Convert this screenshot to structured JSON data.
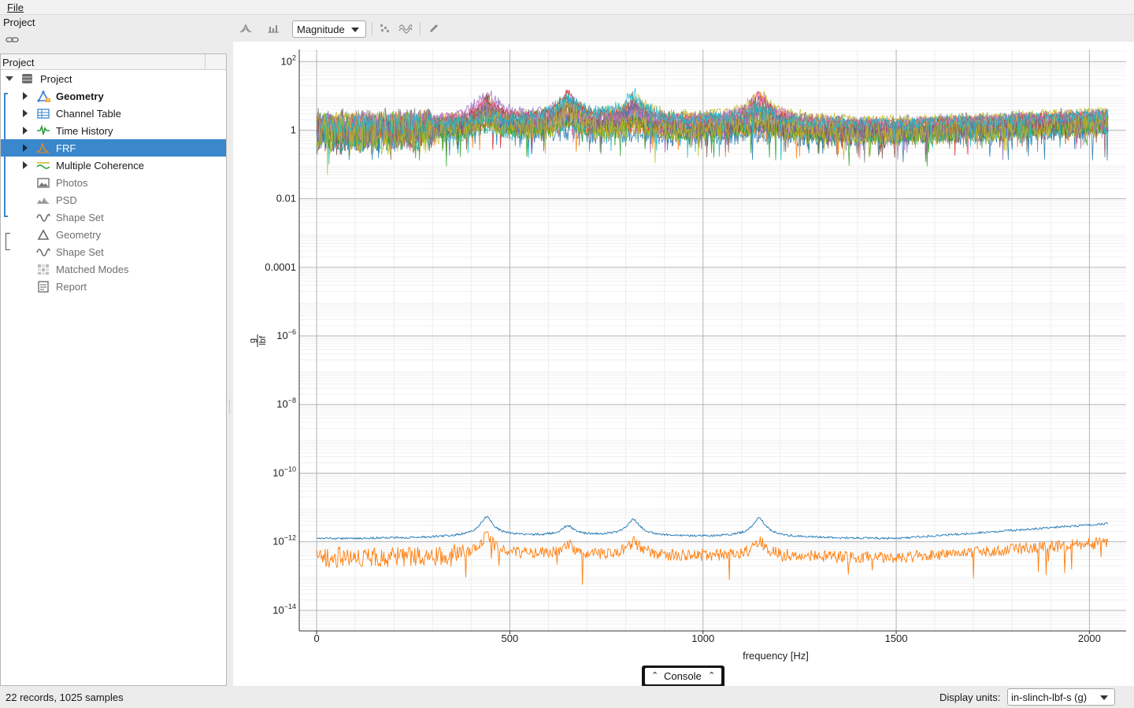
{
  "menu": {
    "file_label": "File"
  },
  "left_panel": {
    "title": "Project",
    "tree_header": "Project"
  },
  "tree": [
    {
      "label": "Project",
      "icon": "database-icon",
      "bold": false,
      "dim": false,
      "expanded": true,
      "selected": false,
      "has_arrow": true
    },
    {
      "label": "Geometry",
      "icon": "geometry-warning-icon",
      "bold": true,
      "dim": false,
      "selected": false,
      "has_arrow": true
    },
    {
      "label": "Channel Table",
      "icon": "table-icon",
      "bold": false,
      "dim": false,
      "selected": false,
      "has_arrow": true
    },
    {
      "label": "Time History",
      "icon": "time-history-icon",
      "bold": false,
      "dim": false,
      "selected": false,
      "has_arrow": true
    },
    {
      "label": "FRF",
      "icon": "frf-icon",
      "bold": false,
      "dim": false,
      "selected": true,
      "has_arrow": true
    },
    {
      "label": "Multiple Coherence",
      "icon": "coherence-icon",
      "bold": false,
      "dim": false,
      "selected": false,
      "has_arrow": true
    },
    {
      "label": "Photos",
      "icon": "photo-icon",
      "bold": false,
      "dim": true,
      "selected": false,
      "has_arrow": false
    },
    {
      "label": "PSD",
      "icon": "psd-icon",
      "bold": false,
      "dim": true,
      "selected": false,
      "has_arrow": false
    },
    {
      "label": "Shape Set",
      "icon": "shape-set-icon",
      "bold": false,
      "dim": true,
      "selected": false,
      "has_arrow": false
    },
    {
      "label": "Geometry",
      "icon": "geometry-icon",
      "bold": false,
      "dim": true,
      "selected": false,
      "has_arrow": false
    },
    {
      "label": "Shape Set",
      "icon": "shape-set-icon",
      "bold": false,
      "dim": true,
      "selected": false,
      "has_arrow": false
    },
    {
      "label": "Matched Modes",
      "icon": "matched-modes-icon",
      "bold": false,
      "dim": true,
      "selected": false,
      "has_arrow": false
    },
    {
      "label": "Report",
      "icon": "report-icon",
      "bold": false,
      "dim": true,
      "selected": false,
      "has_arrow": false
    }
  ],
  "toolbar": {
    "view_mode": "Magnitude",
    "icons": [
      "peak-pick-icon",
      "bar-chart-icon",
      "scatter-icon",
      "wave-overlay-icon",
      "pencil-icon"
    ]
  },
  "chart_data": {
    "type": "line",
    "xlabel": "frequency [Hz]",
    "ylabel_num": "g",
    "ylabel_den": "lbf",
    "x_range": [
      -45,
      2095
    ],
    "y_log": true,
    "y_range_log10": [
      -14.6,
      2.35
    ],
    "x_ticks": [
      0,
      500,
      1000,
      1500,
      2000
    ],
    "x_tick_labels": [
      "0",
      "500",
      "1000",
      "1500",
      "2000"
    ],
    "y_tick_labels": [
      {
        "log": 2,
        "base": "10",
        "exp": "2"
      },
      {
        "log": 0,
        "base": "1",
        "exp": ""
      },
      {
        "log": -2,
        "base": "0.01",
        "exp": ""
      },
      {
        "log": -4,
        "base": "0.0001",
        "exp": ""
      },
      {
        "log": -6,
        "base": "10",
        "exp": "−6"
      },
      {
        "log": -8,
        "base": "10",
        "exp": "−8"
      },
      {
        "log": -10,
        "base": "10",
        "exp": "−10"
      },
      {
        "log": -12,
        "base": "10",
        "exp": "−12"
      },
      {
        "log": -14,
        "base": "10",
        "exp": "−14"
      }
    ],
    "grid": true,
    "record_count": 22,
    "samples_per_record": 1025,
    "x_max_hz": 2048,
    "resonances_hz": [
      440,
      650,
      820,
      1145
    ],
    "palette": [
      "#1f77b4",
      "#ff7f0e",
      "#2ca02c",
      "#d62728",
      "#9467bd",
      "#8c564b",
      "#e377c2",
      "#7f7f7f",
      "#bcbd22",
      "#17becf",
      "#1f77b4",
      "#ff7f0e",
      "#2ca02c",
      "#d62728",
      "#9467bd",
      "#8c564b",
      "#e377c2",
      "#7f7f7f",
      "#bcbd22",
      "#17becf"
    ],
    "highlight_series": [
      {
        "color": "#1f77b4",
        "level_log10": -11.95,
        "noisy": false
      },
      {
        "color": "#ff7f0e",
        "level_log10": -12.5,
        "noisy": true
      }
    ]
  },
  "console": {
    "label": "Console"
  },
  "status": {
    "summary": "22 records, 1025 samples",
    "units_label": "Display units:",
    "units_value": "in-slinch-lbf-s (g)"
  }
}
